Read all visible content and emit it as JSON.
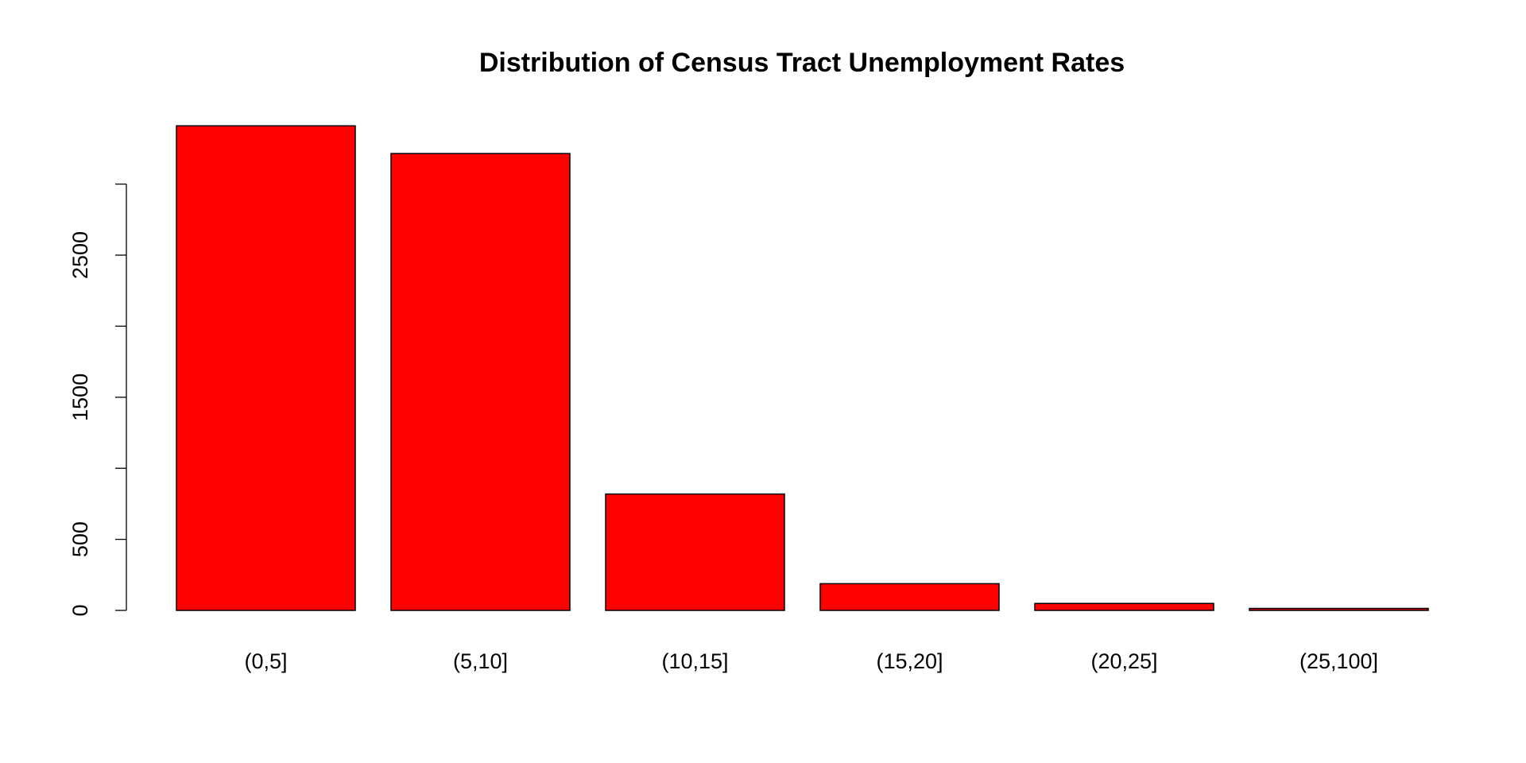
{
  "chart_data": {
    "type": "bar",
    "title": "Distribution of Census Tract Unemployment Rates",
    "categories": [
      "(0,5]",
      "(5,10]",
      "(10,15]",
      "(15,20]",
      "(20,25]",
      "(25,100]"
    ],
    "values": [
      3410,
      3215,
      819,
      188,
      49,
      14
    ],
    "color": "#ff0000",
    "ylim": [
      0,
      3546
    ],
    "yticks": [
      0,
      500,
      {
        "value": 1000,
        "label": null
      },
      1500,
      {
        "value": 2000,
        "label": null
      },
      2500,
      {
        "value": 3000,
        "label": null
      }
    ],
    "grid": false
  }
}
